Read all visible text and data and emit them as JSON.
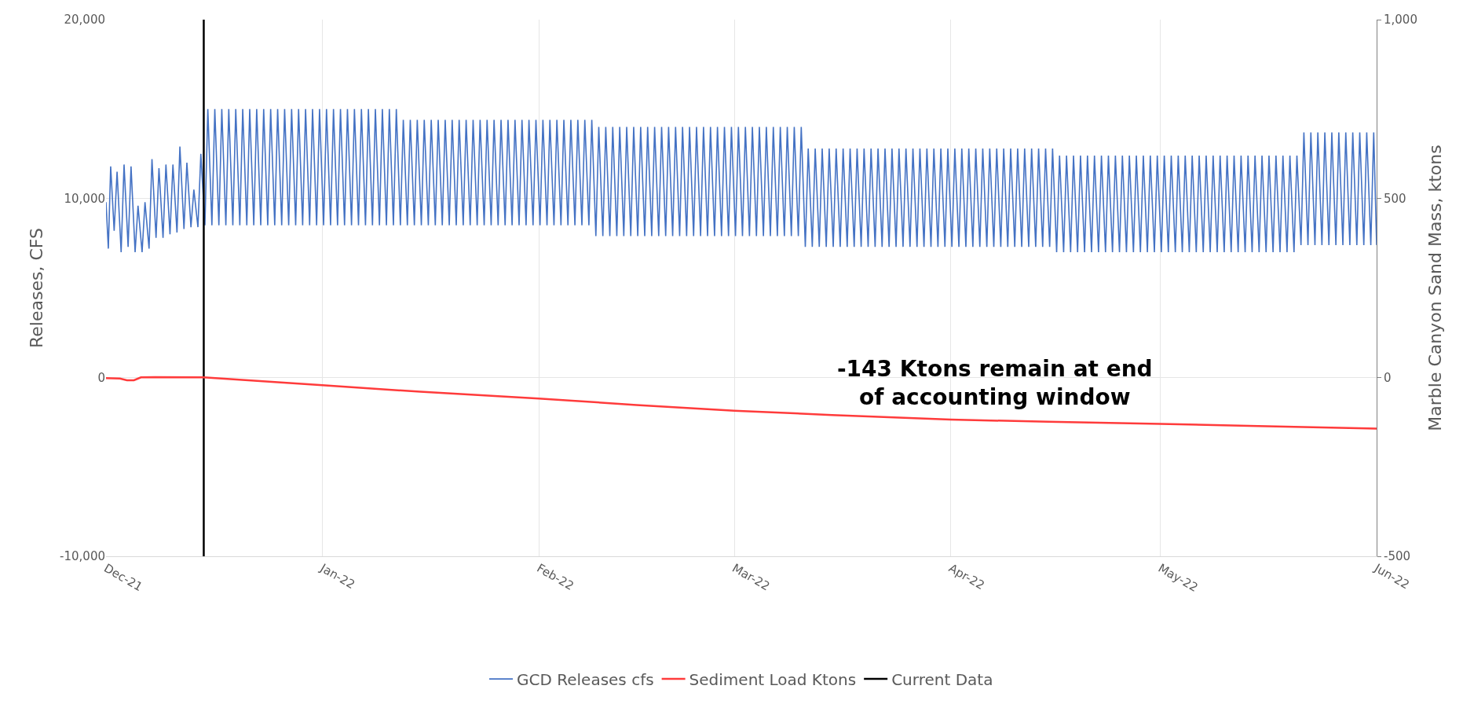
{
  "chart_data": {
    "type": "line",
    "ylabel": "Releases, CFS",
    "y2label": "Marble Canyon Sand Mass, ktons",
    "xlim": [
      "2021-12-01",
      "2022-06-01"
    ],
    "xticks": [
      {
        "value": "2021-12-01",
        "label": "Dec-21"
      },
      {
        "value": "2022-01-01",
        "label": "Jan-22"
      },
      {
        "value": "2022-02-01",
        "label": "Feb-22"
      },
      {
        "value": "2022-03-01",
        "label": "Mar-22"
      },
      {
        "value": "2022-04-01",
        "label": "Apr-22"
      },
      {
        "value": "2022-05-01",
        "label": "May-22"
      },
      {
        "value": "2022-06-01",
        "label": "Jun-22"
      }
    ],
    "ylim": [
      -10000,
      20000
    ],
    "yticks": [
      {
        "value": -10000,
        "label": "-10,000"
      },
      0,
      {
        "value": 10000,
        "label": "10,000"
      },
      {
        "value": 20000,
        "label": "20,000"
      }
    ],
    "y2lim": [
      -500,
      1000
    ],
    "y2ticks": [
      -500,
      0,
      500,
      {
        "value": 1000,
        "label": "1,000"
      }
    ],
    "grid": true,
    "legend": "bottom",
    "line_style": "solid",
    "marker": "none",
    "ref_lines": [
      {
        "axis": "x",
        "value": "2021-12-15",
        "label": "Current Data",
        "color": "#000000"
      }
    ],
    "annotations": [
      "-143 Ktons remain at end\nof accounting window"
    ],
    "series": [
      {
        "name": "GCD Releases cfs",
        "color": "#4472c4",
        "x": [
          "2021-12-01T00:00",
          "2021-12-01T08:00",
          "2021-12-01T16:00",
          "2021-12-02T04:00",
          "2021-12-02T14:00",
          "2021-12-03T04:00",
          "2021-12-03T14:00",
          "2021-12-04T04:00",
          "2021-12-04T14:00",
          "2021-12-05T04:00",
          "2021-12-05T14:00",
          "2021-12-06T04:00",
          "2021-12-06T14:00",
          "2021-12-07T04:00",
          "2021-12-07T14:00",
          "2021-12-08T04:00",
          "2021-12-08T14:00",
          "2021-12-09T04:00",
          "2021-12-09T14:00",
          "2021-12-10T04:00",
          "2021-12-10T14:00",
          "2021-12-11T04:00",
          "2021-12-11T14:00",
          "2021-12-12T04:00",
          "2021-12-12T14:00",
          "2021-12-13T04:00",
          "2021-12-13T14:00",
          "2021-12-14T04:00",
          "2021-12-14T14:00",
          "2021-12-15T04:00",
          "2021-12-15T14:00",
          "2021-12-16T04:00",
          "2021-12-16T14:00",
          "2021-12-17T04:00",
          "2021-12-17T14:00",
          "2021-12-18T04:00",
          "2021-12-18T14:00",
          "2021-12-19T04:00",
          "2021-12-19T14:00",
          "2021-12-20T04:00",
          "2021-12-20T14:00",
          "2021-12-21T04:00",
          "2021-12-21T14:00",
          "2021-12-22T04:00",
          "2021-12-22T14:00",
          "2021-12-23T04:00",
          "2021-12-23T14:00",
          "2021-12-24T04:00",
          "2021-12-24T14:00",
          "2021-12-25T04:00",
          "2021-12-25T14:00",
          "2021-12-26T04:00",
          "2021-12-26T14:00",
          "2021-12-27T04:00",
          "2021-12-27T14:00",
          "2021-12-28T04:00",
          "2021-12-28T14:00",
          "2021-12-29T04:00",
          "2021-12-29T14:00",
          "2021-12-30T04:00",
          "2021-12-30T14:00",
          "2021-12-31T04:00",
          "2021-12-31T14:00",
          "2022-01-01T04:00",
          "2022-01-01T14:00",
          "2022-01-02T04:00",
          "2022-01-02T14:00",
          "2022-01-03T04:00",
          "2022-01-03T14:00",
          "2022-01-04T04:00",
          "2022-01-04T14:00",
          "2022-01-05T04:00",
          "2022-01-05T14:00",
          "2022-01-06T04:00",
          "2022-01-06T14:00",
          "2022-01-07T04:00",
          "2022-01-07T14:00",
          "2022-01-08T04:00",
          "2022-01-08T14:00",
          "2022-01-09T04:00",
          "2022-01-09T14:00",
          "2022-01-10T04:00",
          "2022-01-10T14:00",
          "2022-01-11T04:00",
          "2022-01-11T14:00",
          "2022-01-12T04:00",
          "2022-01-12T14:00",
          "2022-01-13T04:00",
          "2022-01-13T14:00",
          "2022-01-14T04:00",
          "2022-01-14T14:00",
          "2022-01-15T04:00",
          "2022-01-15T14:00",
          "2022-01-16T04:00",
          "2022-01-16T14:00",
          "2022-01-17T04:00",
          "2022-01-17T14:00",
          "2022-01-18T04:00",
          "2022-01-18T14:00",
          "2022-01-19T04:00",
          "2022-01-19T14:00",
          "2022-01-20T04:00",
          "2022-01-20T14:00",
          "2022-01-21T04:00",
          "2022-01-21T14:00",
          "2022-01-22T04:00",
          "2022-01-22T14:00",
          "2022-01-23T04:00",
          "2022-01-23T14:00",
          "2022-01-24T04:00",
          "2022-01-24T14:00",
          "2022-01-25T04:00",
          "2022-01-25T14:00",
          "2022-01-26T04:00",
          "2022-01-26T14:00",
          "2022-01-27T04:00",
          "2022-01-27T14:00",
          "2022-01-28T04:00",
          "2022-01-28T14:00",
          "2022-01-29T04:00",
          "2022-01-29T14:00",
          "2022-01-30T04:00",
          "2022-01-30T14:00",
          "2022-01-31T04:00",
          "2022-01-31T14:00",
          "2022-02-01T04:00",
          "2022-02-01T14:00",
          "2022-02-02T04:00",
          "2022-02-02T14:00",
          "2022-02-03T04:00",
          "2022-02-03T14:00",
          "2022-02-04T04:00",
          "2022-02-04T14:00",
          "2022-02-05T04:00",
          "2022-02-05T14:00",
          "2022-02-06T04:00",
          "2022-02-06T14:00",
          "2022-02-07T04:00",
          "2022-02-07T14:00",
          "2022-02-08T04:00",
          "2022-02-08T14:00",
          "2022-02-09T04:00",
          "2022-02-09T14:00",
          "2022-02-10T04:00",
          "2022-02-10T14:00",
          "2022-02-11T04:00",
          "2022-02-11T14:00",
          "2022-02-12T04:00",
          "2022-02-12T14:00",
          "2022-02-13T04:00",
          "2022-02-13T14:00",
          "2022-02-14T04:00",
          "2022-02-14T14:00",
          "2022-02-15T04:00",
          "2022-02-15T14:00",
          "2022-02-16T04:00",
          "2022-02-16T14:00",
          "2022-02-17T04:00",
          "2022-02-17T14:00",
          "2022-02-18T04:00",
          "2022-02-18T14:00",
          "2022-02-19T04:00",
          "2022-02-19T14:00",
          "2022-02-20T04:00",
          "2022-02-20T14:00",
          "2022-02-21T04:00",
          "2022-02-21T14:00",
          "2022-02-22T04:00",
          "2022-02-22T14:00",
          "2022-02-23T04:00",
          "2022-02-23T14:00",
          "2022-02-24T04:00",
          "2022-02-24T14:00",
          "2022-02-25T04:00",
          "2022-02-25T14:00",
          "2022-02-26T04:00",
          "2022-02-26T14:00",
          "2022-02-27T04:00",
          "2022-02-27T14:00",
          "2022-02-28T04:00",
          "2022-02-28T14:00",
          "2022-03-01T04:00",
          "2022-03-01T14:00",
          "2022-03-02T04:00",
          "2022-03-02T14:00",
          "2022-03-03T04:00",
          "2022-03-03T14:00",
          "2022-03-04T04:00",
          "2022-03-04T14:00",
          "2022-03-05T04:00",
          "2022-03-05T14:00",
          "2022-03-06T04:00",
          "2022-03-06T14:00",
          "2022-03-07T04:00",
          "2022-03-07T14:00",
          "2022-03-08T04:00",
          "2022-03-08T14:00",
          "2022-03-09T04:00",
          "2022-03-09T14:00",
          "2022-03-10T04:00",
          "2022-03-10T14:00",
          "2022-03-11T04:00",
          "2022-03-11T14:00",
          "2022-03-12T04:00",
          "2022-03-12T14:00",
          "2022-03-13T04:00",
          "2022-03-13T14:00",
          "2022-03-14T04:00",
          "2022-03-14T14:00",
          "2022-03-15T04:00",
          "2022-03-15T14:00",
          "2022-03-16T04:00",
          "2022-03-16T14:00",
          "2022-03-17T04:00",
          "2022-03-17T14:00",
          "2022-03-18T04:00",
          "2022-03-18T14:00",
          "2022-03-19T04:00",
          "2022-03-19T14:00",
          "2022-03-20T04:00",
          "2022-03-20T14:00",
          "2022-03-21T04:00",
          "2022-03-21T14:00",
          "2022-03-22T04:00",
          "2022-03-22T14:00",
          "2022-03-23T04:00",
          "2022-03-23T14:00",
          "2022-03-24T04:00",
          "2022-03-24T14:00",
          "2022-03-25T04:00",
          "2022-03-25T14:00",
          "2022-03-26T04:00",
          "2022-03-26T14:00",
          "2022-03-27T04:00",
          "2022-03-27T14:00",
          "2022-03-28T04:00",
          "2022-03-28T14:00",
          "2022-03-29T04:00",
          "2022-03-29T14:00",
          "2022-03-30T04:00",
          "2022-03-30T14:00",
          "2022-03-31T04:00",
          "2022-03-31T14:00",
          "2022-04-01T04:00",
          "2022-04-01T14:00",
          "2022-04-02T04:00",
          "2022-04-02T14:00",
          "2022-04-03T04:00",
          "2022-04-03T14:00",
          "2022-04-04T04:00",
          "2022-04-04T14:00",
          "2022-04-05T04:00",
          "2022-04-05T14:00",
          "2022-04-06T04:00",
          "2022-04-06T14:00",
          "2022-04-07T04:00",
          "2022-04-07T14:00",
          "2022-04-08T04:00",
          "2022-04-08T14:00",
          "2022-04-09T04:00",
          "2022-04-09T14:00",
          "2022-04-10T04:00",
          "2022-04-10T14:00",
          "2022-04-11T04:00",
          "2022-04-11T14:00",
          "2022-04-12T04:00",
          "2022-04-12T14:00",
          "2022-04-13T04:00",
          "2022-04-13T14:00",
          "2022-04-14T04:00",
          "2022-04-14T14:00",
          "2022-04-15T04:00",
          "2022-04-15T14:00",
          "2022-04-16T04:00",
          "2022-04-16T14:00",
          "2022-04-17T04:00",
          "2022-04-17T14:00",
          "2022-04-18T04:00",
          "2022-04-18T14:00",
          "2022-04-19T04:00",
          "2022-04-19T14:00",
          "2022-04-20T04:00",
          "2022-04-20T14:00",
          "2022-04-21T04:00",
          "2022-04-21T14:00",
          "2022-04-22T04:00",
          "2022-04-22T14:00",
          "2022-04-23T04:00",
          "2022-04-23T14:00",
          "2022-04-24T04:00",
          "2022-04-24T14:00",
          "2022-04-25T04:00",
          "2022-04-25T14:00",
          "2022-04-26T04:00",
          "2022-04-26T14:00",
          "2022-04-27T04:00",
          "2022-04-27T14:00",
          "2022-04-28T04:00",
          "2022-04-28T14:00",
          "2022-04-29T04:00",
          "2022-04-29T14:00",
          "2022-04-30T04:00",
          "2022-04-30T14:00",
          "2022-05-01T04:00",
          "2022-05-01T14:00",
          "2022-05-02T04:00",
          "2022-05-02T14:00",
          "2022-05-03T04:00",
          "2022-05-03T14:00",
          "2022-05-04T04:00",
          "2022-05-04T14:00",
          "2022-05-05T04:00",
          "2022-05-05T14:00",
          "2022-05-06T04:00",
          "2022-05-06T14:00",
          "2022-05-07T04:00",
          "2022-05-07T14:00",
          "2022-05-08T04:00",
          "2022-05-08T14:00",
          "2022-05-09T04:00",
          "2022-05-09T14:00",
          "2022-05-10T04:00",
          "2022-05-10T14:00",
          "2022-05-11T04:00",
          "2022-05-11T14:00",
          "2022-05-12T04:00",
          "2022-05-12T14:00",
          "2022-05-13T04:00",
          "2022-05-13T14:00",
          "2022-05-14T04:00",
          "2022-05-14T14:00",
          "2022-05-15T04:00",
          "2022-05-15T14:00",
          "2022-05-16T04:00",
          "2022-05-16T14:00",
          "2022-05-17T04:00",
          "2022-05-17T14:00",
          "2022-05-18T04:00",
          "2022-05-18T14:00",
          "2022-05-19T04:00",
          "2022-05-19T14:00",
          "2022-05-20T04:00",
          "2022-05-20T14:00",
          "2022-05-21T04:00",
          "2022-05-21T14:00",
          "2022-05-22T04:00",
          "2022-05-22T14:00",
          "2022-05-23T04:00",
          "2022-05-23T14:00",
          "2022-05-24T04:00",
          "2022-05-24T14:00",
          "2022-05-25T04:00",
          "2022-05-25T14:00",
          "2022-05-26T04:00",
          "2022-05-26T14:00",
          "2022-05-27T04:00",
          "2022-05-27T14:00",
          "2022-05-28T04:00",
          "2022-05-28T14:00",
          "2022-05-29T04:00",
          "2022-05-29T14:00",
          "2022-05-30T04:00",
          "2022-05-30T14:00",
          "2022-05-31T04:00",
          "2022-05-31T14:00",
          "2022-06-01T00:00"
        ],
        "values": [
          9800,
          7200,
          11800,
          8200,
          11500,
          7000,
          11900,
          7300,
          11800,
          7000,
          9600,
          7000,
          9800,
          7200,
          12200,
          7800,
          11700,
          7800,
          11900,
          8000,
          11900,
          8100,
          12900,
          8300,
          12000,
          8400,
          10500,
          8400,
          12500,
          8500,
          15000,
          8500,
          15000,
          8500,
          15000,
          8500,
          15000,
          8500,
          15000,
          8500,
          15000,
          8500,
          15000,
          8500,
          15000,
          8500,
          15000,
          8500,
          15000,
          8500,
          15000,
          8500,
          15000,
          8500,
          15000,
          8500,
          15000,
          8500,
          15000,
          8500,
          15000,
          8500,
          15000,
          8500,
          15000,
          8500,
          15000,
          8500,
          15000,
          8500,
          15000,
          8500,
          15000,
          8500,
          15000,
          8500,
          15000,
          8500,
          15000,
          8500,
          15000,
          8500,
          15000,
          8500,
          15000,
          8500,
          14400,
          8500,
          14400,
          8500,
          14400,
          8500,
          14400,
          8500,
          14400,
          8500,
          14400,
          8500,
          14400,
          8500,
          14400,
          8500,
          14400,
          8500,
          14400,
          8500,
          14400,
          8500,
          14400,
          8500,
          14400,
          8500,
          14400,
          8500,
          14400,
          8500,
          14400,
          8500,
          14400,
          8500,
          14400,
          8500,
          14400,
          8500,
          14400,
          8500,
          14400,
          8500,
          14400,
          8500,
          14400,
          8500,
          14400,
          8500,
          14400,
          8500,
          14400,
          8500,
          14400,
          8500,
          14400,
          7900,
          14000,
          7900,
          14000,
          7900,
          14000,
          7900,
          14000,
          7900,
          14000,
          7900,
          14000,
          7900,
          14000,
          7900,
          14000,
          7900,
          14000,
          7900,
          14000,
          7900,
          14000,
          7900,
          14000,
          7900,
          14000,
          7900,
          14000,
          7900,
          14000,
          7900,
          14000,
          7900,
          14000,
          7900,
          14000,
          7900,
          14000,
          7900,
          14000,
          7900,
          14000,
          7900,
          14000,
          7900,
          14000,
          7900,
          14000,
          7900,
          14000,
          7900,
          14000,
          7900,
          14000,
          7900,
          14000,
          7900,
          14000,
          7900,
          14000,
          7300,
          12800,
          7300,
          12800,
          7300,
          12800,
          7300,
          12800,
          7300,
          12800,
          7300,
          12800,
          7300,
          12800,
          7300,
          12800,
          7300,
          12800,
          7300,
          12800,
          7300,
          12800,
          7300,
          12800,
          7300,
          12800,
          7300,
          12800,
          7300,
          12800,
          7300,
          12800,
          7300,
          12800,
          7300,
          12800,
          7300,
          12800,
          7300,
          12800,
          7300,
          12800,
          7300,
          12800,
          7300,
          12800,
          7300,
          12800,
          7300,
          12800,
          7300,
          12800,
          7300,
          12800,
          7300,
          12800,
          7300,
          12800,
          7300,
          12800,
          7300,
          12800,
          7300,
          12800,
          7300,
          12800,
          7300,
          12800,
          7300,
          12800,
          7300,
          12800,
          7000,
          12400,
          7000,
          12400,
          7000,
          12400,
          7000,
          12400,
          7000,
          12400,
          7000,
          12400,
          7000,
          12400,
          7000,
          12400,
          7000,
          12400,
          7000,
          12400,
          7000,
          12400,
          7000,
          12400,
          7000,
          12400,
          7000,
          12400,
          7000,
          12400,
          7000,
          12400,
          7000,
          12400,
          7000,
          12400,
          7000,
          12400,
          7000,
          12400,
          7000,
          12400,
          7000,
          12400,
          7000,
          12400,
          7000,
          12400,
          7000,
          12400,
          7000,
          12400,
          7000,
          12400,
          7000,
          12400,
          7000,
          12400,
          7000,
          12400,
          7000,
          12400,
          7000,
          12400,
          7000,
          12400,
          7000,
          12400,
          7000,
          12400,
          7400,
          13700,
          7400,
          13700,
          7400,
          13700,
          7400,
          13700,
          7400,
          13700,
          7400,
          13700,
          7400,
          13700,
          7400,
          13700,
          7400,
          13700,
          7400,
          13700,
          7400,
          13700,
          7400
        ]
      },
      {
        "name": "Sediment Load Ktons",
        "color": "#ff3b3b",
        "axis": "y2",
        "x": [
          "2021-12-01",
          "2021-12-03",
          "2021-12-04",
          "2021-12-05",
          "2021-12-06",
          "2021-12-08",
          "2021-12-15",
          "2022-01-01",
          "2022-01-15",
          "2022-02-01",
          "2022-02-15",
          "2022-03-01",
          "2022-03-15",
          "2022-04-01",
          "2022-04-15",
          "2022-05-01",
          "2022-05-15",
          "2022-06-01"
        ],
        "values": [
          -2,
          -3,
          -8,
          -8,
          0,
          1,
          0,
          -22,
          -40,
          -59,
          -77,
          -93,
          -105,
          -118,
          -124,
          -130,
          -136,
          -143
        ]
      }
    ]
  }
}
